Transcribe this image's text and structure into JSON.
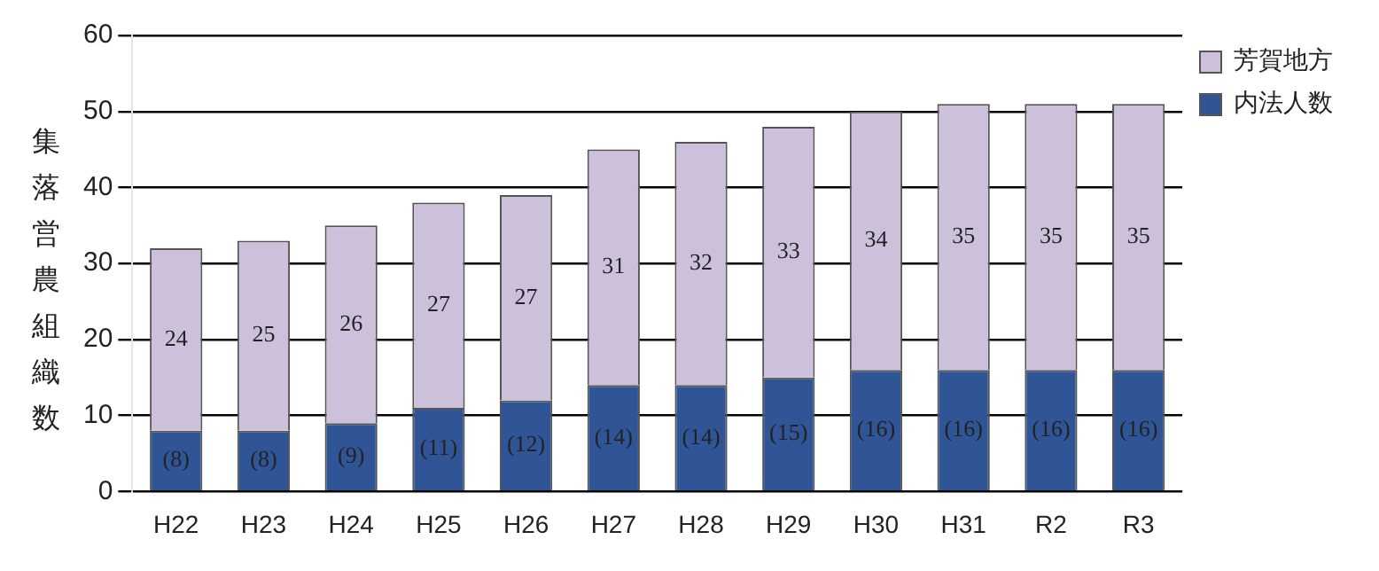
{
  "chart_data": {
    "type": "bar",
    "stacked": true,
    "ylabel": "集落営農組織数",
    "categories": [
      "H22",
      "H23",
      "H24",
      "H25",
      "H26",
      "H27",
      "H28",
      "H29",
      "H30",
      "H31",
      "R2",
      "R3"
    ],
    "series": [
      {
        "name": "内法人数",
        "color": "#2f5597",
        "values": [
          8,
          8,
          9,
          11,
          12,
          14,
          14,
          15,
          16,
          16,
          16,
          16
        ],
        "value_labels": [
          "(8)",
          "(8)",
          "(9)",
          "(11)",
          "(12)",
          "(14)",
          "(14)",
          "(15)",
          "(16)",
          "(16)",
          "(16)",
          "(16)"
        ]
      },
      {
        "name": "芳賀地方",
        "color": "#ccc0da",
        "values": [
          24,
          25,
          26,
          27,
          27,
          31,
          32,
          33,
          34,
          35,
          35,
          35
        ],
        "value_labels": [
          "24",
          "25",
          "26",
          "27",
          "27",
          "31",
          "32",
          "33",
          "34",
          "35",
          "35",
          "35"
        ]
      }
    ],
    "ylim": [
      0,
      60
    ],
    "yticks": [
      0,
      10,
      20,
      30,
      40,
      50,
      60
    ],
    "grid": "y",
    "legend": "top right"
  }
}
